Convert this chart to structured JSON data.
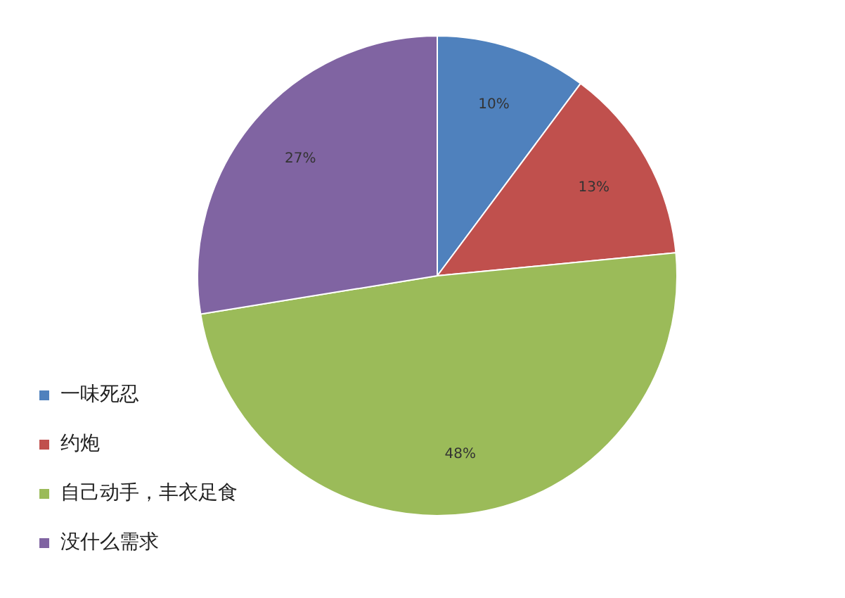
{
  "chart_data": {
    "type": "pie",
    "categories": [
      "一味死忍",
      "约炮",
      "自己动手，丰衣足食",
      "没什么需求"
    ],
    "values": [
      10,
      13,
      48,
      27
    ],
    "colors": [
      "#4f81bd",
      "#c0504d",
      "#9bbb59",
      "#8064a2"
    ],
    "value_labels": [
      "10%",
      "13%",
      "48%",
      "27%"
    ],
    "legend": "left"
  }
}
